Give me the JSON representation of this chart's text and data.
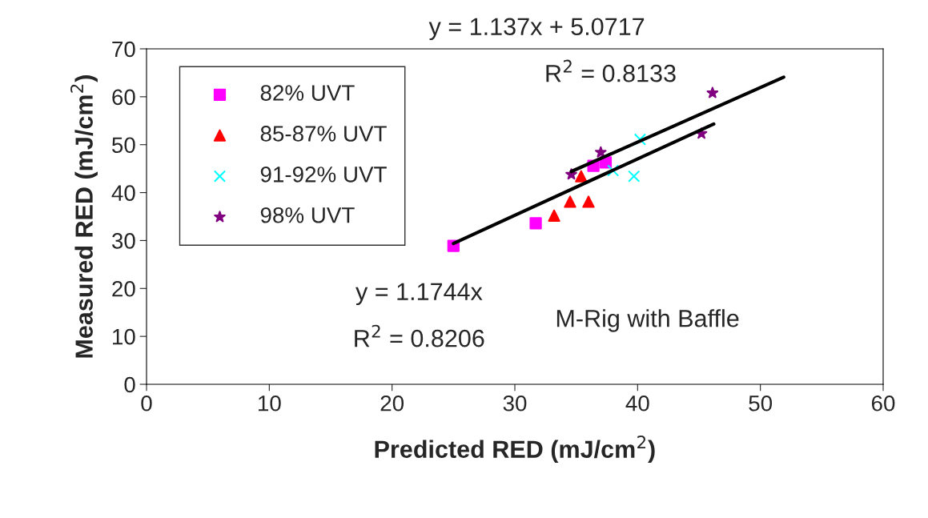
{
  "chart_data": {
    "type": "scatter",
    "xlabel": "Predicted RED (mJ/cm$^{2}$)",
    "ylabel": "Measured RED (mJ/cm$^{2}$)",
    "xlim": [
      0,
      60
    ],
    "ylim": [
      0,
      70
    ],
    "xticks": [
      0,
      10,
      20,
      30,
      40,
      50,
      60
    ],
    "yticks": [
      0,
      10,
      20,
      30,
      40,
      50,
      60,
      70
    ],
    "grid": false,
    "legend": "top left",
    "series": [
      {
        "name": "82% UVT",
        "color": "#ff00ff",
        "marker": "square",
        "x": [
          25.0,
          31.7,
          36.4,
          37.4
        ],
        "values": [
          28.9,
          33.6,
          45.6,
          46.3
        ]
      },
      {
        "name": "85-87% UVT",
        "color": "#ff0000",
        "marker": "triangle",
        "x": [
          33.2,
          34.5,
          36.0,
          35.4
        ],
        "values": [
          35.2,
          38.1,
          38.1,
          43.4
        ]
      },
      {
        "name": "91-92% UVT",
        "color": "#00ffff",
        "marker": "cross",
        "x": [
          40.2,
          38.0,
          39.7
        ],
        "values": [
          51.1,
          44.6,
          43.4
        ]
      },
      {
        "name": "98% UVT",
        "color": "#800080",
        "marker": "star",
        "x": [
          46.1,
          45.2,
          37.0,
          34.6
        ],
        "values": [
          60.8,
          52.3,
          48.4,
          43.8
        ]
      },
      {
        "type": "line",
        "color": "#000000",
        "marker": "none",
        "x": [
          25.0,
          46.2
        ],
        "values": [
          29.4,
          54.3
        ]
      },
      {
        "type": "line",
        "color": "#000000",
        "marker": "none",
        "x": [
          34.6,
          51.9
        ],
        "values": [
          44.4,
          64.1
        ]
      }
    ],
    "annotations": [
      "y = 1.137x + 5.0717",
      "R$^{2}$ = 0.8133",
      "y = 1.1744x",
      "R$^{2}$ = 0.8206",
      "M-Rig with Baffle"
    ]
  }
}
